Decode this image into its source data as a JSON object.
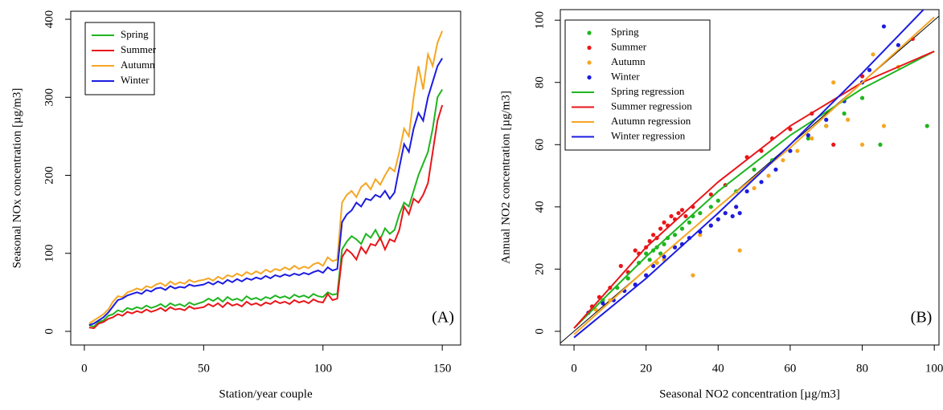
{
  "chart_data": [
    {
      "type": "line",
      "xlabel": "Station/year couple",
      "ylabel": "Seasonal NOx concentration [µg/m3]",
      "annotation": "(A)",
      "xlim": [
        -5.7,
        157.7
      ],
      "ylim": [
        -17.5,
        410.3
      ],
      "xticks": [
        0,
        50,
        100,
        150
      ],
      "yticks": [
        0,
        100,
        200,
        300,
        400
      ],
      "legend": "top-left",
      "x": [
        2,
        4,
        6,
        8,
        10,
        12,
        14,
        16,
        18,
        20,
        22,
        24,
        26,
        28,
        30,
        32,
        34,
        36,
        38,
        40,
        42,
        44,
        46,
        48,
        50,
        52,
        54,
        56,
        58,
        60,
        62,
        64,
        66,
        68,
        70,
        72,
        74,
        76,
        78,
        80,
        82,
        84,
        86,
        88,
        90,
        92,
        94,
        96,
        98,
        100,
        102,
        104,
        106,
        108,
        110,
        112,
        114,
        116,
        118,
        120,
        122,
        124,
        126,
        128,
        130,
        132,
        134,
        136,
        138,
        140,
        142,
        144,
        146,
        148,
        150
      ],
      "series": [
        {
          "name": "Spring",
          "color": "#1fb51f",
          "values": [
            8,
            6,
            12,
            14,
            20,
            22,
            27,
            25,
            30,
            28,
            31,
            29,
            33,
            30,
            32,
            35,
            31,
            36,
            33,
            35,
            32,
            37,
            34,
            36,
            38,
            42,
            39,
            43,
            38,
            44,
            40,
            42,
            39,
            45,
            41,
            43,
            40,
            44,
            42,
            46,
            43,
            45,
            42,
            47,
            44,
            46,
            43,
            48,
            45,
            44,
            50,
            47,
            48,
            105,
            115,
            122,
            118,
            112,
            125,
            120,
            130,
            118,
            132,
            125,
            130,
            150,
            165,
            160,
            180,
            200,
            215,
            230,
            260,
            300,
            310
          ]
        },
        {
          "name": "Summer",
          "color": "#e8161a",
          "values": [
            5,
            4,
            10,
            12,
            16,
            18,
            22,
            20,
            25,
            23,
            26,
            24,
            28,
            25,
            27,
            30,
            26,
            31,
            28,
            29,
            27,
            32,
            29,
            30,
            31,
            35,
            32,
            36,
            31,
            37,
            33,
            35,
            32,
            38,
            34,
            36,
            33,
            37,
            35,
            39,
            36,
            38,
            35,
            40,
            37,
            39,
            36,
            41,
            38,
            37,
            48,
            40,
            42,
            95,
            105,
            100,
            92,
            108,
            100,
            112,
            110,
            120,
            105,
            118,
            115,
            130,
            160,
            150,
            170,
            165,
            175,
            190,
            230,
            270,
            290
          ]
        },
        {
          "name": "Autumn",
          "color": "#f5a623",
          "values": [
            10,
            14,
            18,
            22,
            28,
            38,
            45,
            44,
            50,
            52,
            55,
            53,
            58,
            56,
            60,
            62,
            58,
            64,
            60,
            63,
            61,
            66,
            63,
            65,
            66,
            68,
            65,
            70,
            67,
            72,
            70,
            74,
            71,
            76,
            73,
            77,
            74,
            79,
            76,
            80,
            78,
            82,
            79,
            84,
            80,
            83,
            81,
            86,
            88,
            84,
            95,
            90,
            92,
            165,
            175,
            180,
            172,
            185,
            190,
            182,
            195,
            188,
            200,
            210,
            205,
            230,
            260,
            250,
            300,
            340,
            310,
            355,
            340,
            370,
            385
          ]
        },
        {
          "name": "Winter",
          "color": "#1c1ce0",
          "values": [
            8,
            10,
            14,
            18,
            24,
            32,
            40,
            42,
            46,
            48,
            50,
            48,
            53,
            51,
            55,
            56,
            53,
            58,
            55,
            57,
            56,
            60,
            58,
            59,
            60,
            63,
            60,
            64,
            61,
            66,
            63,
            67,
            64,
            68,
            66,
            69,
            67,
            71,
            68,
            72,
            70,
            73,
            71,
            74,
            72,
            75,
            73,
            76,
            78,
            75,
            82,
            78,
            80,
            140,
            150,
            155,
            165,
            160,
            170,
            168,
            175,
            172,
            180,
            170,
            178,
            210,
            240,
            230,
            260,
            280,
            270,
            300,
            320,
            340,
            350
          ]
        }
      ]
    },
    {
      "type": "scatter",
      "xlabel": "Seasonal NO2 concentration [µg/m3]",
      "ylabel": "Annual NO2 concentration [µg/m3]",
      "annotation": "(B)",
      "xlim": [
        -3.8,
        101.3
      ],
      "ylim": [
        -4.4,
        103.4
      ],
      "xticks": [
        0,
        20,
        40,
        60,
        80,
        100
      ],
      "yticks": [
        0,
        20,
        40,
        60,
        80,
        100
      ],
      "legend": "top-left",
      "series": [
        {
          "name": "Spring",
          "type": "scatter",
          "color": "#1fb51f",
          "x": [
            5,
            8,
            12,
            15,
            18,
            20,
            21,
            22,
            23,
            24,
            25,
            26,
            28,
            30,
            32,
            33,
            35,
            38,
            40,
            45,
            50,
            55,
            60,
            65,
            70,
            75,
            80,
            85,
            98
          ],
          "values": [
            8,
            10,
            14,
            17,
            22,
            25,
            23,
            26,
            27,
            25,
            28,
            30,
            31,
            33,
            35,
            37,
            38,
            40,
            42,
            45,
            52,
            55,
            58,
            62,
            66,
            70,
            75,
            60,
            66
          ]
        },
        {
          "name": "Summer",
          "type": "scatter",
          "color": "#e8161a",
          "x": [
            5,
            7,
            10,
            13,
            15,
            17,
            18,
            20,
            21,
            22,
            23,
            24,
            25,
            26,
            27,
            28,
            29,
            30,
            31,
            33,
            38,
            42,
            48,
            52,
            55,
            60,
            66,
            72,
            80,
            94
          ],
          "values": [
            8,
            11,
            14,
            21,
            19,
            26,
            25,
            27,
            29,
            31,
            30,
            33,
            35,
            34,
            37,
            36,
            38,
            39,
            37,
            40,
            44,
            47,
            56,
            58,
            62,
            65,
            70,
            60,
            82,
            94
          ]
        },
        {
          "name": "Autumn",
          "type": "scatter",
          "color": "#f5a623",
          "x": [
            6,
            10,
            14,
            17,
            20,
            23,
            25,
            28,
            30,
            33,
            35,
            38,
            40,
            42,
            45,
            46,
            50,
            54,
            58,
            62,
            66,
            70,
            72,
            76,
            80,
            83,
            86,
            90
          ],
          "values": [
            7,
            10,
            13,
            15,
            18,
            22,
            23,
            27,
            28,
            18,
            31,
            34,
            36,
            38,
            40,
            26,
            46,
            50,
            55,
            58,
            62,
            66,
            80,
            68,
            60,
            89,
            66,
            85
          ]
        },
        {
          "name": "Winter",
          "type": "scatter",
          "color": "#1c1ce0",
          "x": [
            4,
            8,
            11,
            14,
            17,
            20,
            22,
            25,
            28,
            30,
            32,
            35,
            38,
            40,
            42,
            44,
            45,
            46,
            48,
            52,
            56,
            60,
            65,
            70,
            75,
            80,
            82,
            86,
            90
          ],
          "values": [
            6,
            9,
            10,
            13,
            15,
            18,
            21,
            24,
            27,
            28,
            30,
            32,
            34,
            36,
            38,
            37,
            40,
            38,
            45,
            48,
            52,
            58,
            63,
            68,
            74,
            80,
            84,
            98,
            92
          ]
        },
        {
          "name": "Spring regression",
          "type": "line",
          "color": "#1fb51f",
          "x": [
            0,
            20,
            40,
            60,
            80,
            100
          ],
          "values": [
            1,
            24,
            45,
            63,
            78,
            90
          ]
        },
        {
          "name": "Summer regression",
          "type": "line",
          "color": "#e8161a",
          "x": [
            0,
            20,
            40,
            60,
            80,
            100
          ],
          "values": [
            1,
            27,
            48,
            66,
            80,
            90
          ]
        },
        {
          "name": "Autumn regression",
          "type": "line",
          "color": "#f5a623",
          "x": [
            0,
            20,
            40,
            60,
            80,
            100
          ],
          "values": [
            -1,
            20,
            40,
            59,
            80,
            101
          ]
        },
        {
          "name": "Winter regression",
          "type": "line",
          "color": "#1c1ce0",
          "x": [
            0,
            20,
            40,
            60,
            80,
            100
          ],
          "values": [
            -2,
            17,
            38,
            60,
            83,
            107
          ]
        }
      ]
    }
  ]
}
